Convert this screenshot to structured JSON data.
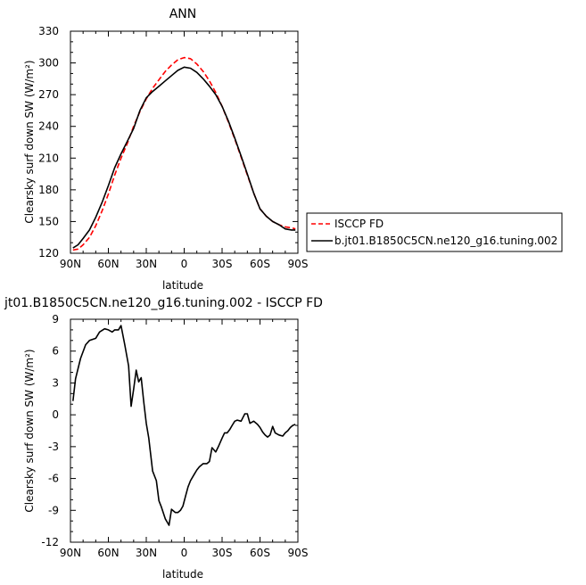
{
  "chart_data": [
    {
      "type": "line",
      "title": "ANN",
      "xlabel": "latitude",
      "ylabel": "Clearsky surf down SW (W/m²)",
      "xlim": [
        90,
        -90
      ],
      "ylim": [
        120,
        330
      ],
      "x_ticks": [
        90,
        60,
        30,
        0,
        -30,
        -60,
        -90
      ],
      "x_tick_labels": [
        "90N",
        "60N",
        "30N",
        "0",
        "30S",
        "60S",
        "90S"
      ],
      "y_ticks": [
        120,
        150,
        180,
        210,
        240,
        270,
        300,
        330
      ],
      "y_tick_labels": [
        "120",
        "150",
        "180",
        "210",
        "240",
        "270",
        "300",
        "330"
      ],
      "grid": false,
      "legend_position": "right-outside",
      "series": [
        {
          "name": "ISCCP FD",
          "color": "#ff0000",
          "dash": "dashed",
          "x": [
            88,
            84,
            80,
            75,
            70,
            65,
            60,
            55,
            50,
            45,
            40,
            35,
            30,
            25,
            20,
            15,
            10,
            5,
            0,
            -5,
            -10,
            -15,
            -20,
            -25,
            -30,
            -35,
            -40,
            -45,
            -50,
            -55,
            -60,
            -65,
            -70,
            -75,
            -80,
            -85,
            -88
          ],
          "y": [
            123,
            124,
            128,
            135,
            146,
            160,
            176,
            194,
            210,
            224,
            240,
            254,
            266,
            276,
            284,
            292,
            298,
            303,
            305,
            304,
            299,
            292,
            283,
            272,
            259,
            244,
            228,
            211,
            194,
            177,
            162,
            155,
            150,
            147,
            145,
            144,
            143
          ]
        },
        {
          "name": "b.jt01.B1850C5CN.ne120_g16.tuning.002",
          "color": "#000000",
          "dash": "solid",
          "x": [
            88,
            84,
            80,
            75,
            70,
            65,
            60,
            55,
            50,
            45,
            40,
            35,
            30,
            25,
            20,
            15,
            10,
            5,
            0,
            -5,
            -10,
            -15,
            -20,
            -25,
            -30,
            -35,
            -40,
            -45,
            -50,
            -55,
            -60,
            -65,
            -70,
            -75,
            -80,
            -85,
            -88
          ],
          "y": [
            125,
            128,
            134,
            142,
            154,
            168,
            184,
            201,
            214,
            226,
            238,
            255,
            267,
            273,
            278,
            283,
            288,
            293,
            296,
            295,
            291,
            285,
            278,
            270,
            259,
            245,
            229,
            212,
            195,
            177,
            162,
            155,
            150,
            147,
            143,
            142,
            142
          ]
        }
      ]
    },
    {
      "type": "line",
      "title": "jt01.B1850C5CN.ne120_g16.tuning.002 - ISCCP FD",
      "xlabel": "latitude",
      "ylabel": "Clearsky surf down SW (W/m²)",
      "xlim": [
        90,
        -90
      ],
      "ylim": [
        -12,
        9
      ],
      "x_ticks": [
        90,
        60,
        30,
        0,
        -30,
        -60,
        -90
      ],
      "x_tick_labels": [
        "90N",
        "60N",
        "30N",
        "0",
        "30S",
        "60S",
        "90S"
      ],
      "y_ticks": [
        -12,
        -9,
        -6,
        -3,
        0,
        3,
        6,
        9
      ],
      "y_tick_labels": [
        "-12",
        "-9",
        "-6",
        "-3",
        "0",
        "3",
        "6",
        "9"
      ],
      "grid": false,
      "series": [
        {
          "name": "",
          "color": "#000000",
          "dash": "solid",
          "x": [
            88,
            86,
            82,
            78,
            75,
            70,
            67,
            63,
            60,
            57,
            55,
            52,
            50,
            47,
            44,
            42,
            40,
            38,
            36,
            34,
            32,
            30,
            28,
            25,
            22,
            20,
            18,
            15,
            12,
            10,
            7,
            5,
            3,
            1,
            -1,
            -3,
            -5,
            -8,
            -10,
            -12,
            -15,
            -18,
            -20,
            -22,
            -25,
            -27,
            -30,
            -32,
            -34,
            -36,
            -38,
            -40,
            -42,
            -45,
            -48,
            -50,
            -52,
            -55,
            -58,
            -60,
            -62,
            -64,
            -66,
            -68,
            -70,
            -72,
            -75,
            -78,
            -80,
            -82,
            -84,
            -86,
            -88
          ],
          "y": [
            1.3,
            3.4,
            5.3,
            6.6,
            7.0,
            7.2,
            7.8,
            8.1,
            8.0,
            7.8,
            8.0,
            8.0,
            8.4,
            6.6,
            4.6,
            0.8,
            2.4,
            4.2,
            3.1,
            3.5,
            1.2,
            -0.8,
            -2.2,
            -5.3,
            -6.2,
            -8.1,
            -8.7,
            -9.8,
            -10.4,
            -8.9,
            -9.2,
            -9.2,
            -9.0,
            -8.6,
            -7.7,
            -6.8,
            -6.2,
            -5.6,
            -5.2,
            -4.9,
            -4.6,
            -4.6,
            -4.4,
            -3.1,
            -3.5,
            -3.0,
            -2.2,
            -1.7,
            -1.7,
            -1.4,
            -1.0,
            -0.6,
            -0.5,
            -0.6,
            0.1,
            0.1,
            -0.8,
            -0.6,
            -0.9,
            -1.2,
            -1.6,
            -1.9,
            -2.1,
            -1.9,
            -1.1,
            -1.7,
            -1.9,
            -2.0,
            -1.7,
            -1.5,
            -1.2,
            -1.0,
            -0.9
          ]
        }
      ]
    }
  ]
}
